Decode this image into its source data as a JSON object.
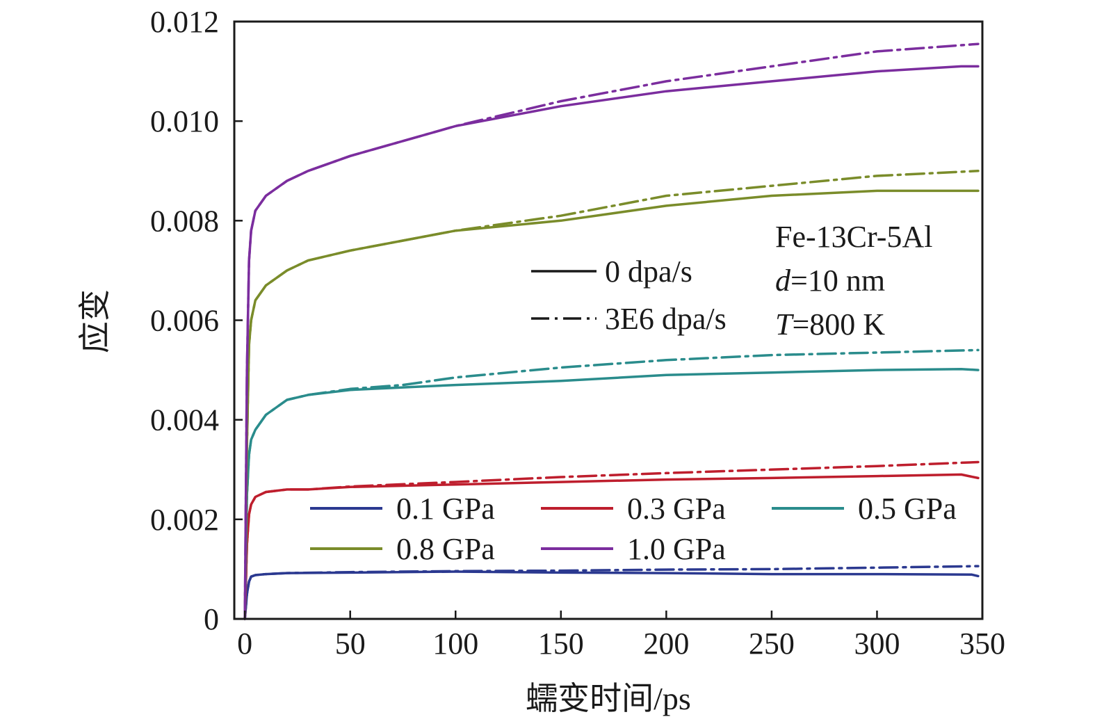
{
  "chart_data": {
    "type": "line",
    "xlabel": "蠕变时间/ps",
    "ylabel": "应变",
    "xlim": [
      -5,
      350
    ],
    "ylim": [
      0,
      0.012
    ],
    "x_ticks": [
      "0",
      "50",
      "100",
      "150",
      "200",
      "250",
      "300",
      "350"
    ],
    "x_tick_values": [
      0,
      50,
      100,
      150,
      200,
      250,
      300,
      350
    ],
    "y_ticks": [
      "0",
      "0.002",
      "0.004",
      "0.006",
      "0.008",
      "0.010",
      "0.012"
    ],
    "y_tick_values": [
      0,
      0.002,
      0.004,
      0.006,
      0.008,
      0.01,
      0.012
    ],
    "grid": false,
    "annotations": [
      {
        "prefix": "",
        "italic": "",
        "suffix": "Fe-13Cr-5Al"
      },
      {
        "prefix": "",
        "italic": "d",
        "suffix": "=10 nm"
      },
      {
        "prefix": "",
        "italic": "T",
        "suffix": "=800 K"
      }
    ],
    "style_legend": [
      {
        "label": "0 dpa/s",
        "dash": "solid"
      },
      {
        "label": "3E6 dpa/s",
        "dash": "dashdot"
      }
    ],
    "color_legend": [
      {
        "label": "0.1 GPa",
        "color": "#2b3990"
      },
      {
        "label": "0.3 GPa",
        "color": "#be1e2d"
      },
      {
        "label": "0.5 GPa",
        "color": "#2a8c8c"
      },
      {
        "label": "0.8 GPa",
        "color": "#7a8c2a"
      },
      {
        "label": "1.0 GPa",
        "color": "#7b2d9e"
      }
    ],
    "series": [
      {
        "name": "0.1 GPa",
        "dash": "solid",
        "color": "#2b3990",
        "x": [
          0,
          1,
          2,
          3,
          5,
          10,
          20,
          50,
          100,
          150,
          200,
          250,
          300,
          345,
          348
        ],
        "y": [
          0,
          0.0005,
          0.00075,
          0.00085,
          0.00088,
          0.0009,
          0.00092,
          0.00093,
          0.00095,
          0.00093,
          0.00092,
          0.0009,
          0.0009,
          0.00089,
          0.00086
        ]
      },
      {
        "name": "0.1 GPa",
        "dash": "dashdot",
        "color": "#2b3990",
        "x": [
          0,
          1,
          2,
          3,
          5,
          10,
          20,
          50,
          100,
          150,
          200,
          250,
          300,
          348
        ],
        "y": [
          0,
          0.0005,
          0.00075,
          0.00085,
          0.00088,
          0.0009,
          0.00092,
          0.00094,
          0.00096,
          0.00097,
          0.00099,
          0.001,
          0.00103,
          0.00106
        ]
      },
      {
        "name": "0.3 GPa",
        "dash": "solid",
        "color": "#be1e2d",
        "x": [
          0,
          1,
          2,
          3,
          5,
          10,
          20,
          30,
          50,
          100,
          150,
          200,
          250,
          300,
          340,
          348
        ],
        "y": [
          0,
          0.0015,
          0.0021,
          0.0023,
          0.00245,
          0.00255,
          0.0026,
          0.0026,
          0.00265,
          0.0027,
          0.00275,
          0.0028,
          0.00283,
          0.00287,
          0.0029,
          0.00283
        ]
      },
      {
        "name": "0.3 GPa",
        "dash": "dashdot",
        "color": "#be1e2d",
        "x": [
          0,
          1,
          2,
          3,
          5,
          10,
          20,
          30,
          50,
          100,
          150,
          200,
          250,
          300,
          348
        ],
        "y": [
          0,
          0.0015,
          0.0021,
          0.0023,
          0.00245,
          0.00255,
          0.0026,
          0.0026,
          0.00266,
          0.00275,
          0.00285,
          0.00293,
          0.003,
          0.00307,
          0.00315
        ]
      },
      {
        "name": "0.5 GPa",
        "dash": "solid",
        "color": "#2a8c8c",
        "x": [
          0,
          1,
          2,
          3,
          5,
          10,
          20,
          30,
          50,
          75,
          100,
          150,
          200,
          250,
          300,
          340,
          348
        ],
        "y": [
          0,
          0.0025,
          0.0033,
          0.0036,
          0.0038,
          0.0041,
          0.0044,
          0.0045,
          0.0046,
          0.00465,
          0.0047,
          0.00478,
          0.0049,
          0.00495,
          0.005,
          0.00502,
          0.005
        ]
      },
      {
        "name": "0.5 GPa",
        "dash": "dashdot",
        "color": "#2a8c8c",
        "x": [
          0,
          1,
          2,
          3,
          5,
          10,
          20,
          30,
          50,
          75,
          100,
          150,
          200,
          250,
          300,
          348
        ],
        "y": [
          0,
          0.0025,
          0.0033,
          0.0036,
          0.0038,
          0.0041,
          0.0044,
          0.0045,
          0.00462,
          0.0047,
          0.00485,
          0.00505,
          0.0052,
          0.0053,
          0.00535,
          0.0054
        ]
      },
      {
        "name": "0.8 GPa",
        "dash": "solid",
        "color": "#7a8c2a",
        "x": [
          0,
          1,
          2,
          3,
          5,
          10,
          20,
          30,
          50,
          75,
          100,
          150,
          200,
          250,
          300,
          340,
          348
        ],
        "y": [
          0,
          0.0035,
          0.0055,
          0.006,
          0.0064,
          0.0067,
          0.007,
          0.0072,
          0.0074,
          0.0076,
          0.0078,
          0.008,
          0.0083,
          0.0085,
          0.0086,
          0.0086,
          0.0086
        ]
      },
      {
        "name": "0.8 GPa",
        "dash": "dashdot",
        "color": "#7a8c2a",
        "x": [
          0,
          1,
          2,
          3,
          5,
          10,
          20,
          30,
          50,
          75,
          100,
          150,
          200,
          250,
          300,
          348
        ],
        "y": [
          0,
          0.0035,
          0.0055,
          0.006,
          0.0064,
          0.0067,
          0.007,
          0.0072,
          0.0074,
          0.0076,
          0.0078,
          0.0081,
          0.0085,
          0.0087,
          0.0089,
          0.009
        ]
      },
      {
        "name": "1.0 GPa",
        "dash": "solid",
        "color": "#7b2d9e",
        "x": [
          0,
          1,
          2,
          3,
          5,
          10,
          20,
          30,
          50,
          75,
          100,
          150,
          200,
          250,
          300,
          340,
          348
        ],
        "y": [
          0,
          0.005,
          0.0072,
          0.0078,
          0.0082,
          0.0085,
          0.0088,
          0.009,
          0.0093,
          0.0096,
          0.0099,
          0.0103,
          0.0106,
          0.0108,
          0.011,
          0.0111,
          0.0111
        ]
      },
      {
        "name": "1.0 GPa",
        "dash": "dashdot",
        "color": "#7b2d9e",
        "x": [
          0,
          1,
          2,
          3,
          5,
          10,
          20,
          30,
          50,
          75,
          100,
          150,
          200,
          250,
          300,
          348
        ],
        "y": [
          0,
          0.005,
          0.0072,
          0.0078,
          0.0082,
          0.0085,
          0.0088,
          0.009,
          0.0093,
          0.0096,
          0.0099,
          0.0104,
          0.0108,
          0.0111,
          0.0114,
          0.01155
        ]
      }
    ]
  }
}
